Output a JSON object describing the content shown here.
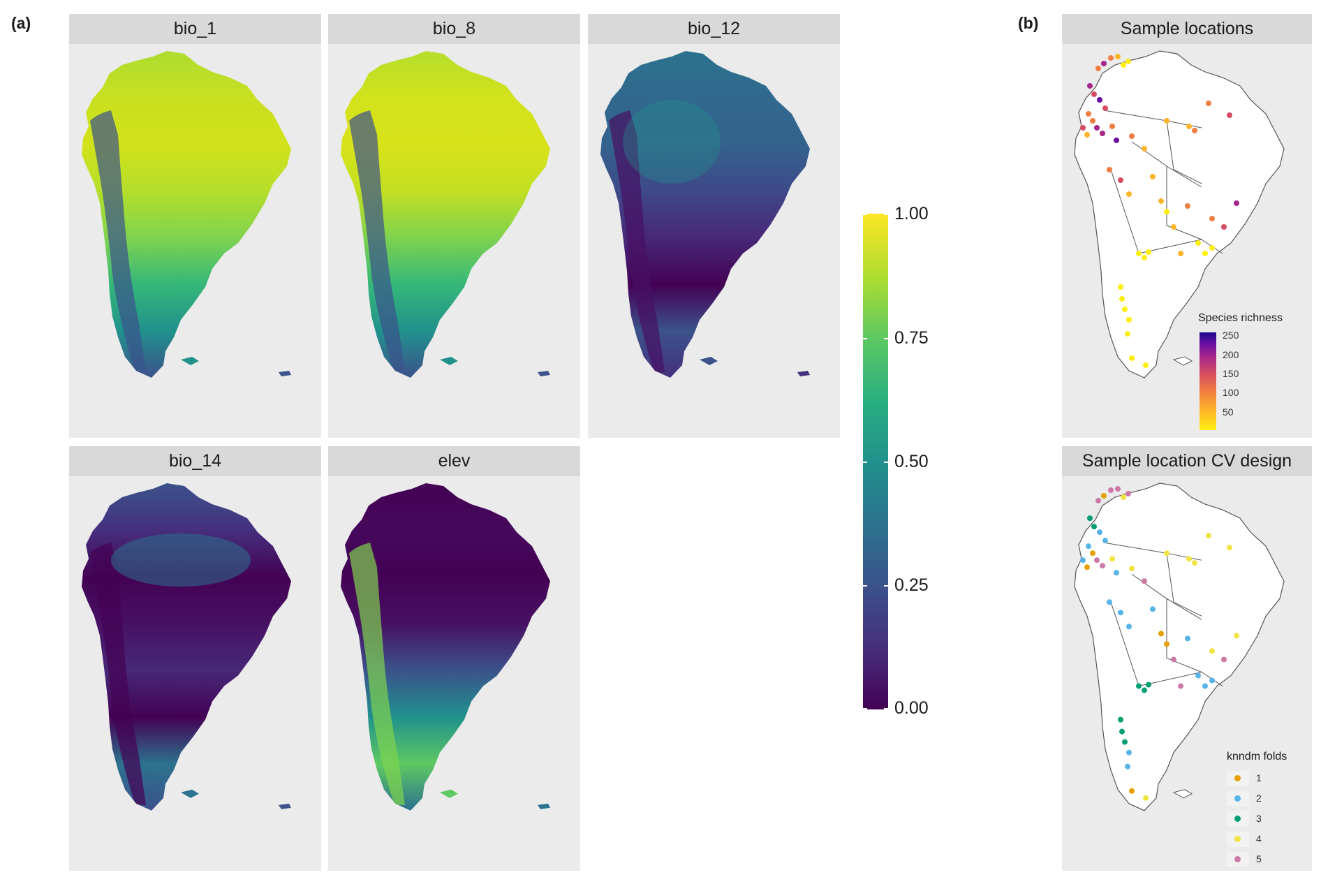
{
  "figure": {
    "panel_a_label": "(a)",
    "panel_b_label": "(b)"
  },
  "facets": [
    {
      "title": "bio_1",
      "palette": [
        "#addc30",
        "#c8e020",
        "#d2e21b",
        "#b5de2b",
        "#7fd34e",
        "#35b779",
        "#21918c",
        "#3b528b"
      ]
    },
    {
      "title": "bio_8",
      "palette": [
        "#b5de2b",
        "#d2e21b",
        "#d8e219",
        "#c2df23",
        "#7fd34e",
        "#35b779",
        "#21918c",
        "#3b528b"
      ]
    },
    {
      "title": "bio_12",
      "palette": [
        "#2c728e",
        "#31688e",
        "#33638d",
        "#3e4989",
        "#482878",
        "#440154",
        "#3b528b",
        "#46307e"
      ]
    },
    {
      "title": "bio_14",
      "palette": [
        "#3b528b",
        "#46307e",
        "#440154",
        "#471063",
        "#482878",
        "#440154",
        "#2c728e",
        "#3b528b"
      ]
    },
    {
      "title": "elev",
      "palette": [
        "#440154",
        "#46085c",
        "#440154",
        "#471063",
        "#3b528b",
        "#21918c",
        "#5ec962",
        "#2c728e"
      ]
    }
  ],
  "colorbar": {
    "ticks": [
      "1.00",
      "0.75",
      "0.50",
      "0.25",
      "0.00"
    ],
    "tick_values": [
      1.0,
      0.75,
      0.5,
      0.25,
      0.0
    ],
    "colors": [
      "#440154",
      "#3b528b",
      "#21918c",
      "#5ec962",
      "#fde725"
    ]
  },
  "sample_panel": {
    "title": "Sample locations",
    "legend_title": "Species richness",
    "legend_ticks": [
      "250",
      "200",
      "150",
      "100",
      "50"
    ],
    "legend_values": [
      250,
      200,
      150,
      100,
      50
    ]
  },
  "cv_panel": {
    "title": "Sample location CV design",
    "legend_title": "knndm folds",
    "folds": [
      {
        "label": "1",
        "color": "#e69f00"
      },
      {
        "label": "2",
        "color": "#56b4e9"
      },
      {
        "label": "3",
        "color": "#009e73"
      },
      {
        "label": "4",
        "color": "#f0e442"
      },
      {
        "label": "5",
        "color": "#cc79a7"
      }
    ]
  }
}
